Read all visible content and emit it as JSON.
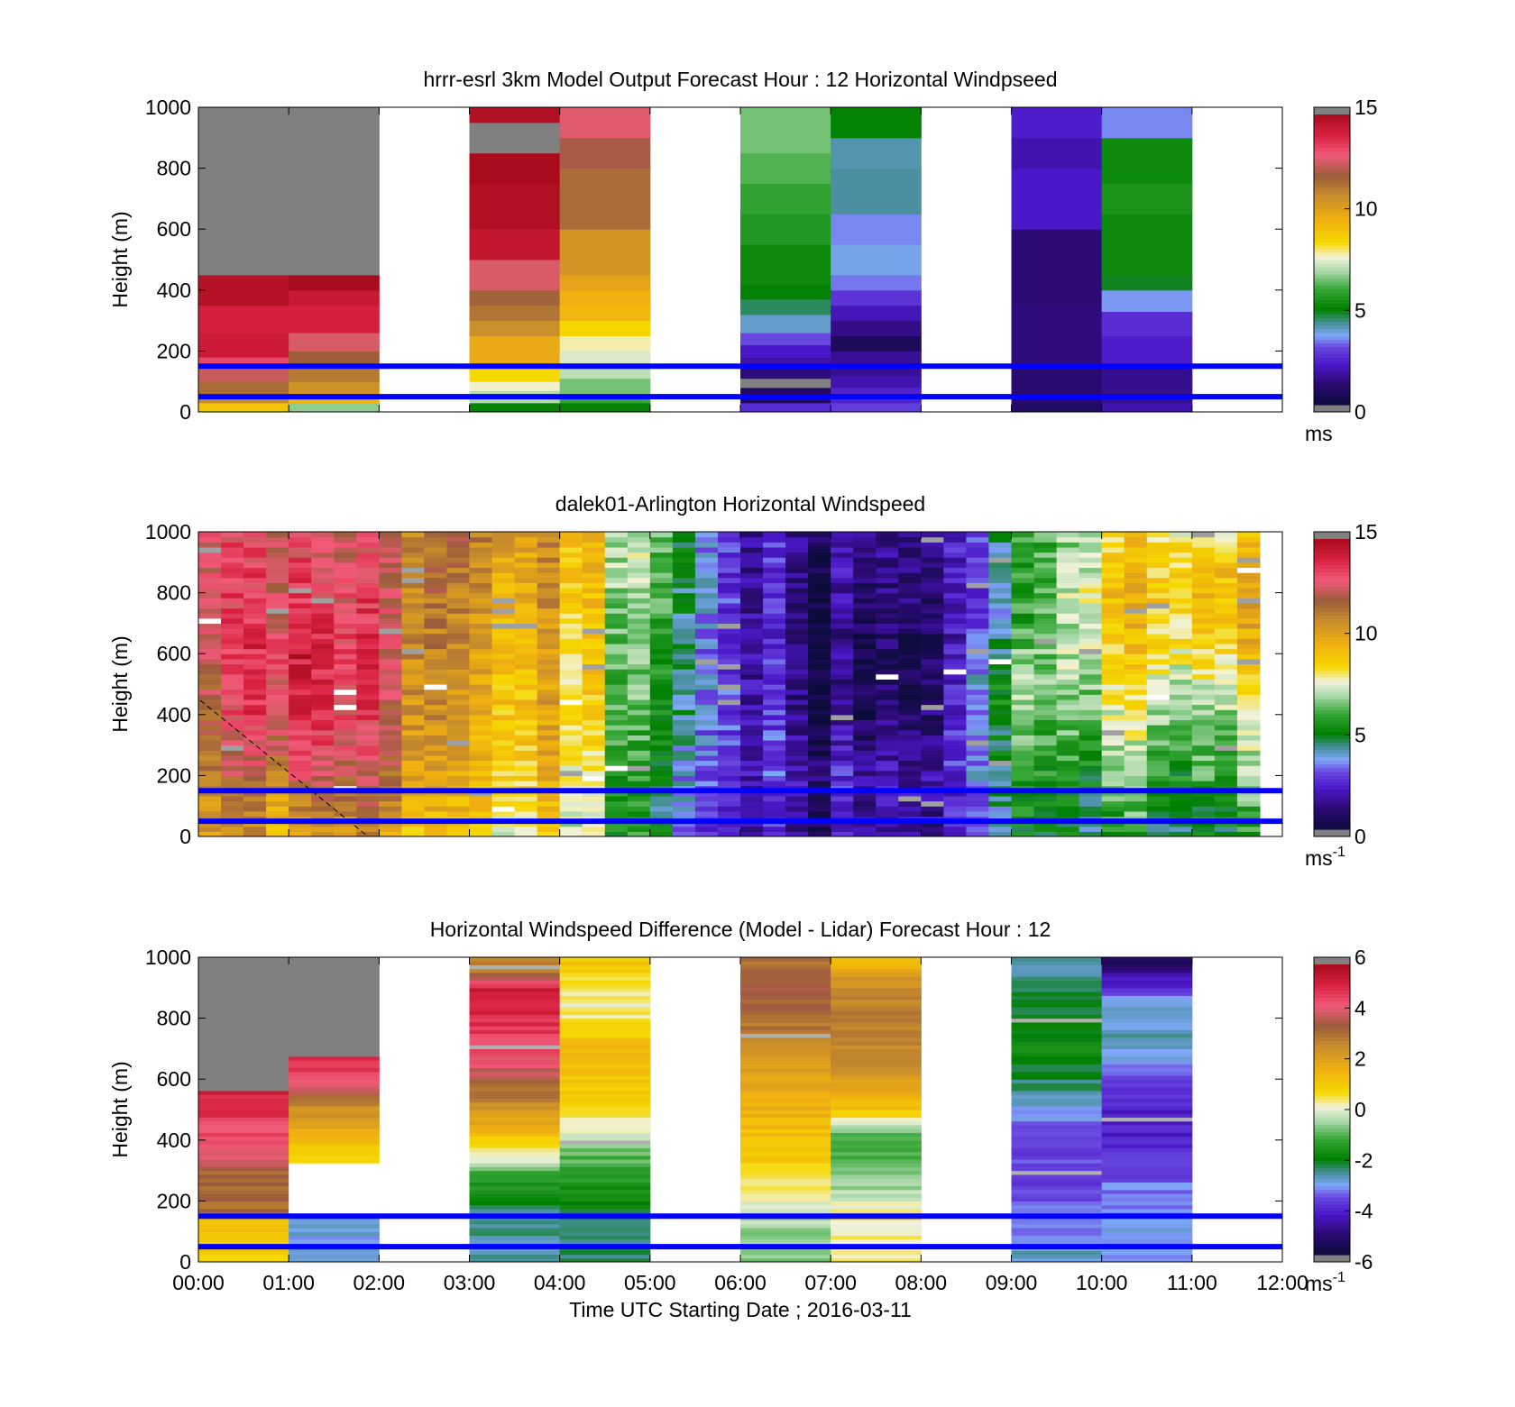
{
  "figure": {
    "xlabel": "Time UTC  Starting Date ; 2016-03-11",
    "x_tick_labels": [
      "00:00",
      "01:00",
      "02:00",
      "03:00",
      "04:00",
      "05:00",
      "06:00",
      "07:00",
      "08:00",
      "09:00",
      "10:00",
      "11:00",
      "12:00"
    ],
    "reference_lines_m": [
      150,
      50
    ],
    "reference_line_color": "#0000ff"
  },
  "chart_data": [
    {
      "type": "heatmap",
      "title": "hrrr-esrl 3km Model Output   Forecast Hour : 12 Horizontal Windpseed",
      "ylabel": "Height (m)",
      "xlim_hours": [
        0,
        12
      ],
      "ylim": [
        0,
        1000
      ],
      "y_ticks": [
        0,
        200,
        400,
        600,
        800,
        1000
      ],
      "colorbar": {
        "min": 0,
        "max": 15,
        "ticks": [
          0,
          5,
          10,
          15
        ],
        "label": "ms",
        "label_sup": ""
      },
      "columns": [
        {
          "t0": 0,
          "t1": 1,
          "bands": [
            [
              0,
              30,
              9
            ],
            [
              30,
              60,
              10.8
            ],
            [
              60,
              100,
              11.5
            ],
            [
              100,
              150,
              12.4
            ],
            [
              150,
              180,
              13.2
            ],
            [
              180,
              260,
              14.2
            ],
            [
              260,
              350,
              14
            ],
            [
              350,
              450,
              14.7
            ],
            [
              450,
              1000,
              -1
            ]
          ]
        },
        {
          "t0": 1,
          "t1": 2,
          "bands": [
            [
              0,
              30,
              6.7
            ],
            [
              30,
              60,
              9.5
            ],
            [
              60,
              100,
              10.6
            ],
            [
              100,
              150,
              11.2
            ],
            [
              150,
              200,
              11.8
            ],
            [
              200,
              260,
              12.6
            ],
            [
              260,
              350,
              14
            ],
            [
              350,
              400,
              14.3
            ],
            [
              400,
              450,
              15
            ],
            [
              450,
              1000,
              -1
            ]
          ]
        },
        {
          "t0": 3,
          "t1": 4,
          "bands": [
            [
              0,
              30,
              5
            ],
            [
              30,
              70,
              7
            ],
            [
              70,
              100,
              7.7
            ],
            [
              100,
              150,
              8.4
            ],
            [
              150,
              250,
              9.8
            ],
            [
              250,
              300,
              10.7
            ],
            [
              300,
              350,
              11.3
            ],
            [
              350,
              400,
              11.7
            ],
            [
              400,
              500,
              12.6
            ],
            [
              500,
              600,
              14.4
            ],
            [
              600,
              750,
              14.8
            ],
            [
              750,
              850,
              15
            ],
            [
              850,
              950,
              -1
            ],
            [
              950,
              1000,
              14.8
            ]
          ]
        },
        {
          "t0": 4,
          "t1": 5,
          "bands": [
            [
              0,
              30,
              5
            ],
            [
              30,
              60,
              6
            ],
            [
              60,
              110,
              6.5
            ],
            [
              110,
              150,
              7.1
            ],
            [
              150,
              200,
              7.4
            ],
            [
              200,
              250,
              7.8
            ],
            [
              250,
              300,
              8.5
            ],
            [
              300,
              350,
              9.4
            ],
            [
              350,
              400,
              9.6
            ],
            [
              400,
              450,
              10
            ],
            [
              450,
              600,
              10.5
            ],
            [
              600,
              800,
              11.5
            ],
            [
              800,
              900,
              12
            ],
            [
              900,
              1000,
              12.7
            ]
          ]
        },
        {
          "t0": 6,
          "t1": 7,
          "bands": [
            [
              0,
              30,
              2.5
            ],
            [
              30,
              80,
              0.8
            ],
            [
              80,
              110,
              -1
            ],
            [
              110,
              150,
              1.2
            ],
            [
              150,
              180,
              1.7
            ],
            [
              180,
              220,
              2.1
            ],
            [
              220,
              260,
              3.0
            ],
            [
              260,
              320,
              3.9
            ],
            [
              320,
              370,
              4.5
            ],
            [
              370,
              420,
              5.0
            ],
            [
              420,
              550,
              5.2
            ],
            [
              550,
              650,
              5.6
            ],
            [
              650,
              750,
              5.9
            ],
            [
              750,
              850,
              6.2
            ],
            [
              850,
              1000,
              6.5
            ]
          ]
        },
        {
          "t0": 7,
          "t1": 8,
          "bands": [
            [
              0,
              30,
              2.8
            ],
            [
              30,
              80,
              2.3
            ],
            [
              80,
              120,
              1.8
            ],
            [
              120,
              200,
              1.5
            ],
            [
              200,
              250,
              0.6
            ],
            [
              250,
              300,
              1.3
            ],
            [
              300,
              350,
              1.9
            ],
            [
              350,
              400,
              2.6
            ],
            [
              400,
              450,
              3.3
            ],
            [
              450,
              550,
              3.7
            ],
            [
              550,
              650,
              3.4
            ],
            [
              650,
              800,
              4.2
            ],
            [
              800,
              900,
              4.1
            ],
            [
              900,
              1000,
              5.0
            ]
          ]
        },
        {
          "t0": 9,
          "t1": 10,
          "bands": [
            [
              0,
              30,
              0.8
            ],
            [
              30,
              150,
              1.0
            ],
            [
              150,
              250,
              1.2
            ],
            [
              250,
              350,
              1.2
            ],
            [
              350,
              450,
              1.1
            ],
            [
              450,
              600,
              1.1
            ],
            [
              600,
              700,
              2.1
            ],
            [
              700,
              800,
              2.1
            ],
            [
              800,
              900,
              1.8
            ],
            [
              900,
              1000,
              2.2
            ]
          ]
        },
        {
          "t0": 10,
          "t1": 11,
          "bands": [
            [
              0,
              30,
              1.8
            ],
            [
              30,
              150,
              1.4
            ],
            [
              150,
              250,
              2.2
            ],
            [
              250,
              330,
              2.5
            ],
            [
              330,
              400,
              3.5
            ],
            [
              400,
              450,
              4.8
            ],
            [
              450,
              650,
              5.2
            ],
            [
              650,
              750,
              5.5
            ],
            [
              750,
              900,
              5.2
            ],
            [
              900,
              1000,
              3.4
            ]
          ]
        }
      ]
    },
    {
      "type": "heatmap",
      "title": "dalek01-Arlington  Horizontal Windspeed",
      "ylabel": "Height (m)",
      "xlim_hours": [
        0,
        12
      ],
      "ylim": [
        0,
        1000
      ],
      "y_ticks": [
        0,
        200,
        400,
        600,
        800,
        1000
      ],
      "colorbar": {
        "min": 0,
        "max": 15,
        "ticks": [
          0,
          5,
          10,
          15
        ],
        "label": "ms",
        "label_sup": "-1"
      },
      "data_end_hour": 11.75,
      "time_step_hours": 0.25,
      "hour_means": [
        [
          9.6,
          9.9,
          10.4,
          10.9,
          11.2,
          11.5,
          11.8,
          11.8,
          11.9,
          12.0,
          12.0
        ],
        [
          10.2,
          11.0,
          12.4,
          13.4,
          13.9,
          14.1,
          14.2,
          13.8,
          13.4,
          13.2,
          13.0
        ],
        [
          9.8,
          10.6,
          11.6,
          12.0,
          12.2,
          12.4,
          12.5,
          12.4,
          12.2,
          12.0,
          11.8
        ],
        [
          8.5,
          9.0,
          9.4,
          9.6,
          9.8,
          10.0,
          10.2,
          10.4,
          10.8,
          11.0,
          11.3
        ],
        [
          8.0,
          8.6,
          9.0,
          9.2,
          9.4,
          9.4,
          9.5,
          9.6,
          9.8,
          10.0,
          10.2
        ],
        [
          5.0,
          4.8,
          4.8,
          5.2,
          5.6,
          5.8,
          6.0,
          6.2,
          6.4,
          6.6,
          6.6
        ],
        [
          1.5,
          2.0,
          2.4,
          2.6,
          2.5,
          2.4,
          2.2,
          2.2,
          2.1,
          2.0,
          2.0
        ],
        [
          1.6,
          1.9,
          1.9,
          1.5,
          1.1,
          0.8,
          0.8,
          0.9,
          1.0,
          1.3,
          1.6
        ],
        [
          1.7,
          1.9,
          1.9,
          1.6,
          1.1,
          1.0,
          1.0,
          1.0,
          1.3,
          1.5,
          1.7
        ],
        [
          4.4,
          4.6,
          5.0,
          5.4,
          5.8,
          6.0,
          5.4,
          4.6,
          4.4,
          4.6,
          4.8
        ],
        [
          4.6,
          5.0,
          5.6,
          6.0,
          6.6,
          7.2,
          7.6,
          8.0,
          8.3,
          8.0,
          7.4
        ],
        [
          5.4,
          5.8,
          6.4,
          6.8,
          7.4,
          8.0,
          9.0,
          9.6,
          9.8,
          9.6,
          8.8
        ]
      ]
    },
    {
      "type": "heatmap",
      "title": "Horizontal Windspeed Difference (Model - Lidar) Forecast Hour : 12",
      "ylabel": "Height (m)",
      "xlim_hours": [
        0,
        12
      ],
      "ylim": [
        0,
        1000
      ],
      "y_ticks": [
        0,
        200,
        400,
        600,
        800,
        1000
      ],
      "colorbar": {
        "min": -6,
        "max": 6,
        "ticks": [
          -6,
          -4,
          -2,
          0,
          2,
          4,
          6
        ],
        "label": "ms",
        "label_sup": "-1"
      },
      "columns": [
        {
          "t0": 0,
          "t1": 1,
          "data_top": 560,
          "profile": [
            [
              0,
              1.0
            ],
            [
              150,
              1.2
            ],
            [
              160,
              3.2
            ],
            [
              300,
              3.2
            ],
            [
              330,
              4.0
            ],
            [
              450,
              4.6
            ],
            [
              560,
              5.3
            ]
          ]
        },
        {
          "t0": 1,
          "t1": 2,
          "data_top": 680,
          "profile": [
            [
              0,
              -3.0
            ],
            [
              150,
              -3.0
            ],
            [
              160,
              -99
            ],
            [
              320,
              -99
            ],
            [
              330,
              0.6
            ],
            [
              400,
              1.5
            ],
            [
              500,
              2.5
            ],
            [
              580,
              4.0
            ],
            [
              620,
              4.8
            ],
            [
              680,
              5.0
            ]
          ]
        },
        {
          "t0": 3,
          "t1": 4,
          "data_top": 1000,
          "profile": [
            [
              0,
              -2.8
            ],
            [
              150,
              -2.6
            ],
            [
              300,
              -1.0
            ],
            [
              320,
              -0.4
            ],
            [
              380,
              0.7
            ],
            [
              450,
              1.8
            ],
            [
              550,
              3.0
            ],
            [
              650,
              4.2
            ],
            [
              800,
              5.0
            ],
            [
              900,
              5.4
            ],
            [
              950,
              3.0
            ],
            [
              1000,
              2.5
            ]
          ]
        },
        {
          "t0": 4,
          "t1": 5,
          "data_top": 1000,
          "profile": [
            [
              0,
              -2.5
            ],
            [
              150,
              -2.3
            ],
            [
              300,
              -1.2
            ],
            [
              400,
              -0.6
            ],
            [
              430,
              0.2
            ],
            [
              550,
              1.0
            ],
            [
              700,
              1.4
            ],
            [
              800,
              0.4
            ],
            [
              880,
              0.2
            ],
            [
              950,
              1.0
            ],
            [
              1000,
              1.2
            ]
          ]
        },
        {
          "t0": 6,
          "t1": 7,
          "data_top": 1000,
          "profile": [
            [
              0,
              -0.8
            ],
            [
              150,
              -0.4
            ],
            [
              250,
              0.3
            ],
            [
              350,
              1.0
            ],
            [
              500,
              1.6
            ],
            [
              600,
              2.0
            ],
            [
              800,
              3.2
            ],
            [
              900,
              3.6
            ],
            [
              1000,
              3.0
            ]
          ]
        },
        {
          "t0": 7,
          "t1": 8,
          "data_top": 1000,
          "profile": [
            [
              0,
              0.2
            ],
            [
              150,
              0.4
            ],
            [
              300,
              -1.0
            ],
            [
              420,
              -1.2
            ],
            [
              450,
              -0.2
            ],
            [
              500,
              1.2
            ],
            [
              650,
              2.6
            ],
            [
              800,
              3.0
            ],
            [
              900,
              2.6
            ],
            [
              1000,
              1.4
            ]
          ]
        },
        {
          "t0": 9,
          "t1": 10,
          "data_top": 1000,
          "profile": [
            [
              0,
              -2.8
            ],
            [
              100,
              -3.2
            ],
            [
              200,
              -3.6
            ],
            [
              300,
              -3.8
            ],
            [
              450,
              -3.4
            ],
            [
              550,
              -2.6
            ],
            [
              700,
              -1.8
            ],
            [
              800,
              -2.0
            ],
            [
              900,
              -2.4
            ],
            [
              1000,
              -2.8
            ]
          ]
        },
        {
          "t0": 10,
          "t1": 11,
          "data_top": 1000,
          "profile": [
            [
              0,
              -3.0
            ],
            [
              150,
              -3.2
            ],
            [
              250,
              -3.4
            ],
            [
              350,
              -4.0
            ],
            [
              500,
              -4.3
            ],
            [
              600,
              -3.6
            ],
            [
              700,
              -2.8
            ],
            [
              850,
              -2.8
            ],
            [
              900,
              -4.0
            ],
            [
              950,
              -4.8
            ],
            [
              1000,
              -5.6
            ]
          ]
        }
      ]
    }
  ]
}
